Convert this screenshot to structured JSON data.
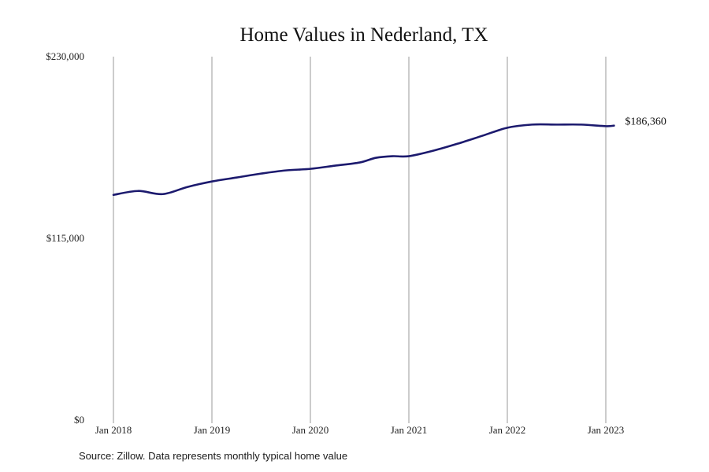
{
  "chart_data": {
    "type": "line",
    "title": "Home Values in Nederland, TX",
    "xlabel": "",
    "ylabel": "",
    "x_ticks": [
      "Jan 2018",
      "Jan 2019",
      "Jan 2020",
      "Jan 2021",
      "Jan 2022",
      "Jan 2023"
    ],
    "y_ticks": [
      "$0",
      "$115,000",
      "$230,000"
    ],
    "ylim": [
      0,
      230000
    ],
    "grid": "vertical",
    "end_label": "$186,360",
    "line_color": "#1c1a6e",
    "grid_color": "#9a9a9a",
    "series": [
      {
        "x": [
          "2018-01",
          "2018-04",
          "2018-07",
          "2018-10",
          "2019-01",
          "2019-04",
          "2019-07",
          "2019-10",
          "2020-01",
          "2020-04",
          "2020-07",
          "2020-09",
          "2020-11",
          "2021-01",
          "2021-04",
          "2021-07",
          "2021-10",
          "2022-01",
          "2022-04",
          "2022-07",
          "2022-10",
          "2023-01",
          "2023-02"
        ],
        "values": [
          142500,
          145000,
          143000,
          147500,
          151000,
          153500,
          156000,
          158000,
          159000,
          161000,
          163000,
          166000,
          167000,
          167000,
          170500,
          175000,
          180000,
          185000,
          187000,
          187000,
          187000,
          186000,
          186360
        ]
      }
    ]
  },
  "source_note": "Source: Zillow. Data represents monthly typical home value"
}
